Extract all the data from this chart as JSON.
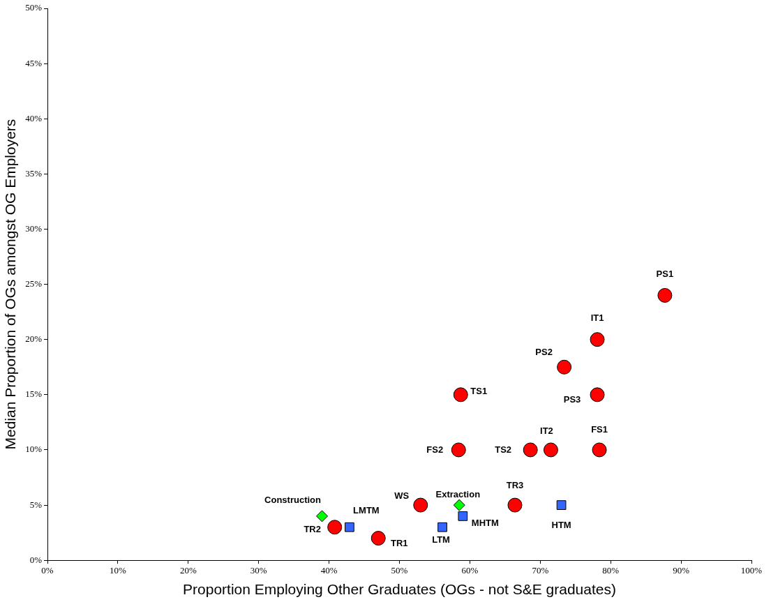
{
  "chart_data": {
    "type": "scatter",
    "xlabel": "Proportion Employing Other Graduates (OGs - not S&E graduates)",
    "ylabel": "Median Proportion of OGs amongst OG Employers",
    "xlim": [
      0,
      100
    ],
    "ylim": [
      0,
      50
    ],
    "xticks": [
      {
        "value": 0,
        "label": "0%"
      },
      {
        "value": 10,
        "label": "10%"
      },
      {
        "value": 20,
        "label": "20%"
      },
      {
        "value": 30,
        "label": "30%"
      },
      {
        "value": 40,
        "label": "40%"
      },
      {
        "value": 50,
        "label": "50%"
      },
      {
        "value": 60,
        "label": "60%"
      },
      {
        "value": 70,
        "label": "70%"
      },
      {
        "value": 80,
        "label": "80%"
      },
      {
        "value": 90,
        "label": "90%"
      },
      {
        "value": 100,
        "label": "100%"
      }
    ],
    "yticks": [
      {
        "value": 0,
        "label": "0%"
      },
      {
        "value": 5,
        "label": "5%"
      },
      {
        "value": 10,
        "label": "10%"
      },
      {
        "value": 15,
        "label": "15%"
      },
      {
        "value": 20,
        "label": "20%"
      },
      {
        "value": 25,
        "label": "25%"
      },
      {
        "value": 30,
        "label": "30%"
      },
      {
        "value": 35,
        "label": "35%"
      },
      {
        "value": 40,
        "label": "40%"
      },
      {
        "value": 45,
        "label": "45%"
      },
      {
        "value": 50,
        "label": "50%"
      }
    ],
    "grid": false,
    "legend": false,
    "series": [
      {
        "color": "#ff0000",
        "marker": "circle",
        "x": [
          87.7,
          78.1,
          73.4,
          78.1,
          58.7,
          58.4,
          68.6,
          71.5,
          78.4,
          53.0,
          66.4,
          40.8,
          47.0
        ],
        "values": [
          24,
          20,
          17.5,
          15,
          15,
          10,
          10,
          10,
          10,
          5,
          5,
          3,
          2
        ],
        "value_labels": [
          "PS1",
          "IT1",
          "PS2",
          "PS3",
          "TS1",
          "FS2",
          "TS2",
          "IT2",
          "FS1",
          "WS",
          "TR3",
          "TR2",
          "TR1"
        ]
      },
      {
        "color": "#3366ff",
        "marker": "square",
        "x": [
          42.9,
          56.1,
          59.0,
          73.0
        ],
        "values": [
          3,
          3,
          4,
          5
        ],
        "value_labels": [
          "LMTM",
          "LTM",
          "MHTM",
          "HTM"
        ]
      },
      {
        "color": "#00ff00",
        "marker": "diamond",
        "x": [
          39.0,
          58.5
        ],
        "values": [
          4,
          5
        ],
        "value_labels": [
          "Construction",
          "Extraction"
        ]
      }
    ]
  }
}
